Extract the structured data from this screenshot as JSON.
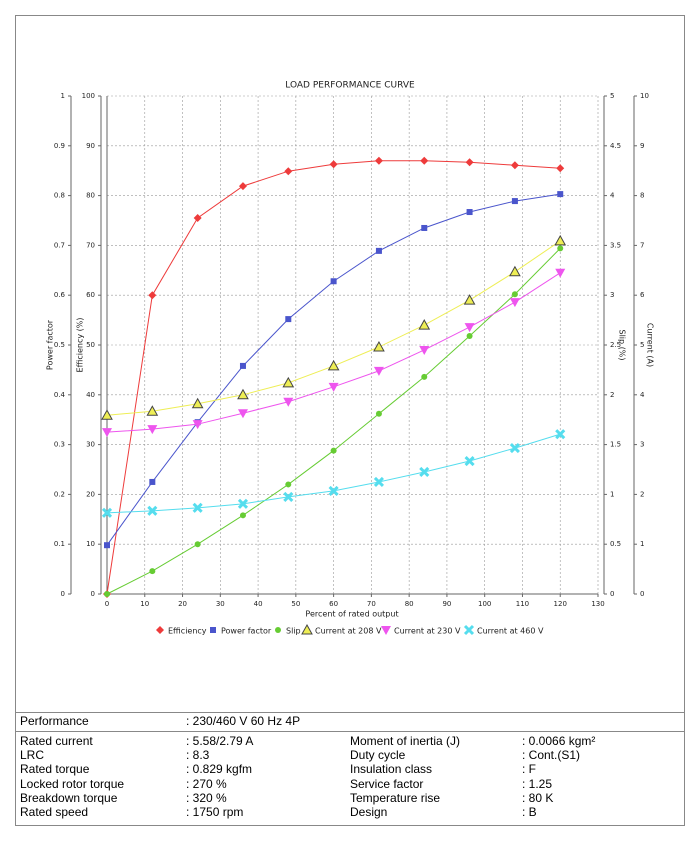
{
  "chart_data": {
    "type": "line",
    "title": "LOAD PERFORMANCE CURVE",
    "xlabel": "Percent of rated output",
    "xlim": [
      0,
      130
    ],
    "xticks": [
      0,
      10,
      20,
      30,
      40,
      50,
      60,
      70,
      80,
      90,
      100,
      110,
      120,
      130
    ],
    "ylabel": "Power factor",
    "ylim": [
      0,
      1
    ],
    "yticks": [
      0,
      0.1,
      0.2,
      0.3,
      0.4,
      0.5,
      0.6,
      0.7,
      0.8,
      0.9,
      1
    ],
    "y2label": "Efficiency (%)",
    "y2lim": [
      0,
      100
    ],
    "y2ticks": [
      0,
      10,
      20,
      30,
      40,
      50,
      60,
      70,
      80,
      90,
      100
    ],
    "y3label": "Slip (%)",
    "y3lim": [
      0,
      5
    ],
    "y3ticks": [
      0,
      0.5,
      1,
      1.5,
      2,
      2.5,
      3,
      3.5,
      4,
      4.5,
      5
    ],
    "y4label": "Current (A)",
    "y4lim": [
      0,
      10
    ],
    "y4ticks": [
      0,
      1,
      2,
      3,
      4,
      5,
      6,
      7,
      8,
      9,
      10
    ],
    "grid": true,
    "x": [
      0,
      12,
      24,
      36,
      48,
      60,
      72,
      84,
      96,
      108,
      120
    ],
    "series": [
      {
        "name": "Efficiency",
        "color": "#ee3b3b",
        "marker": "diamond",
        "axis": "y2",
        "values": [
          0,
          60.0,
          75.5,
          81.9,
          84.9,
          86.3,
          87.0,
          87.0,
          86.7,
          86.1,
          85.5
        ]
      },
      {
        "name": "Power factor",
        "color": "#4a55cc",
        "marker": "square",
        "axis": "y",
        "values": [
          0.098,
          0.225,
          0.345,
          0.458,
          0.552,
          0.628,
          0.689,
          0.735,
          0.767,
          0.789,
          0.803
        ]
      },
      {
        "name": "Slip",
        "color": "#66cc33",
        "marker": "circle",
        "axis": "y3",
        "values": [
          0,
          0.23,
          0.5,
          0.79,
          1.1,
          1.44,
          1.81,
          2.18,
          2.59,
          3.01,
          3.47
        ]
      },
      {
        "name": "Current at 208 V",
        "color": "#eeee55",
        "marker": "triangle-up",
        "axis": "y4",
        "values": [
          3.59,
          3.67,
          3.82,
          4.0,
          4.24,
          4.58,
          4.96,
          5.4,
          5.9,
          6.47,
          7.09
        ]
      },
      {
        "name": "Current at 230 V",
        "color": "#ee55ee",
        "marker": "triangle-down",
        "axis": "y4",
        "values": [
          3.25,
          3.31,
          3.41,
          3.63,
          3.86,
          4.16,
          4.48,
          4.9,
          5.36,
          5.86,
          6.45
        ]
      },
      {
        "name": "Current at 460 V",
        "color": "#55ddee",
        "marker": "cross",
        "axis": "y4",
        "values": [
          1.63,
          1.67,
          1.73,
          1.81,
          1.95,
          2.07,
          2.25,
          2.45,
          2.67,
          2.93,
          3.21
        ]
      }
    ]
  },
  "table": {
    "rows": [
      [
        "Performance",
        ": 230/460 V 60 Hz 4P"
      ],
      [
        "Rated current",
        ": 5.58/2.79 A",
        "Moment of inertia (J)",
        ": 0.0066 kgm²"
      ],
      [
        "LRC",
        ": 8.3",
        "Duty cycle",
        ": Cont.(S1)"
      ],
      [
        "Rated torque",
        ": 0.829 kgfm",
        "Insulation class",
        ": F"
      ],
      [
        "Locked rotor torque",
        ": 270 %",
        "Service factor",
        ": 1.25"
      ],
      [
        "Breakdown torque",
        ": 320 %",
        "Temperature rise",
        ": 80 K"
      ],
      [
        "Rated speed",
        ": 1750 rpm",
        "Design",
        ": B"
      ]
    ]
  }
}
